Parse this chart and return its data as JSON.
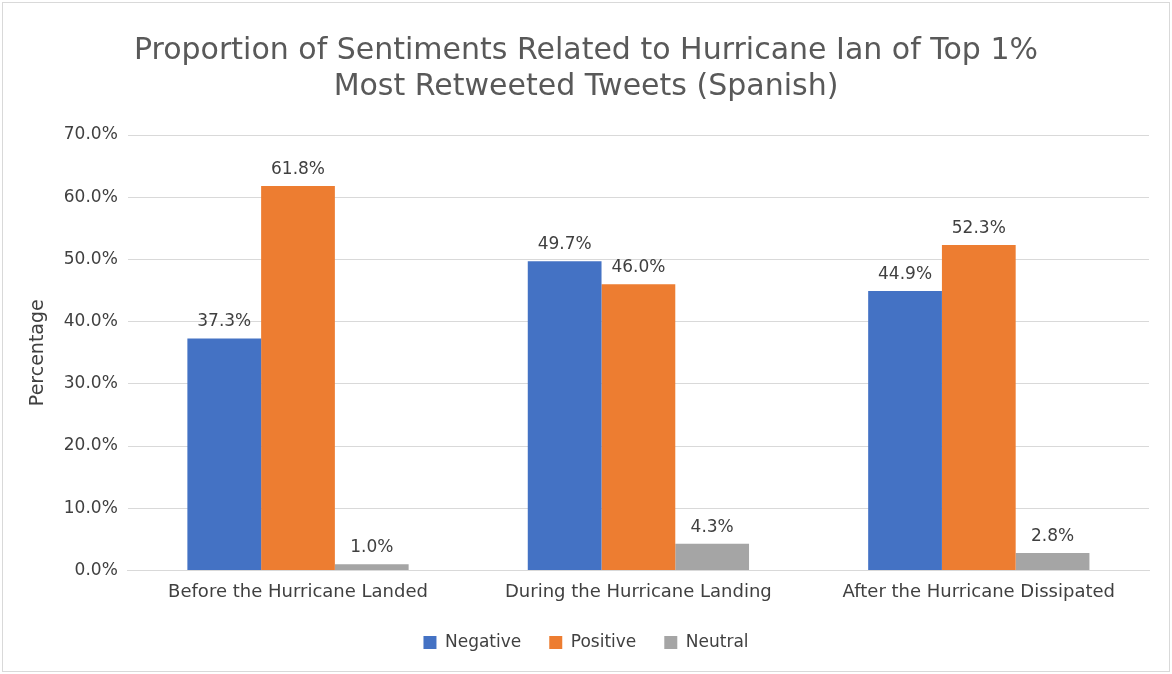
{
  "chart_data": {
    "type": "bar",
    "title": [
      "Proportion of Sentiments Related to Hurricane Ian of Top 1%",
      "Most Retweeted Tweets (Spanish)"
    ],
    "ylabel": "Percentage",
    "categories": [
      "Before the Hurricane Landed",
      "During the Hurricane Landing",
      "After the Hurricane Dissipated"
    ],
    "series": [
      {
        "name": "Negative",
        "color": "#4472c4",
        "values": [
          37.3,
          49.7,
          44.9
        ],
        "value_labels": [
          "37.3%",
          "49.7%",
          "44.9%"
        ]
      },
      {
        "name": "Positive",
        "color": "#ed7d31",
        "values": [
          61.8,
          46.0,
          52.3
        ],
        "value_labels": [
          "61.8%",
          "46.0%",
          "52.3%"
        ]
      },
      {
        "name": "Neutral",
        "color": "#a5a5a5",
        "values": [
          1.0,
          4.3,
          2.8
        ],
        "value_labels": [
          "1.0%",
          "4.3%",
          "2.8%"
        ]
      }
    ],
    "ylim": [
      0,
      70
    ],
    "yticks": [
      {
        "value": 0,
        "label": "0.0%"
      },
      {
        "value": 10,
        "label": "10.0%"
      },
      {
        "value": 20,
        "label": "20.0%"
      },
      {
        "value": 30,
        "label": "30.0%"
      },
      {
        "value": 40,
        "label": "40.0%"
      },
      {
        "value": 50,
        "label": "50.0%"
      },
      {
        "value": 60,
        "label": "60.0%"
      },
      {
        "value": 70,
        "label": "70.0%"
      }
    ],
    "grid": "y",
    "legend": "bottom"
  }
}
